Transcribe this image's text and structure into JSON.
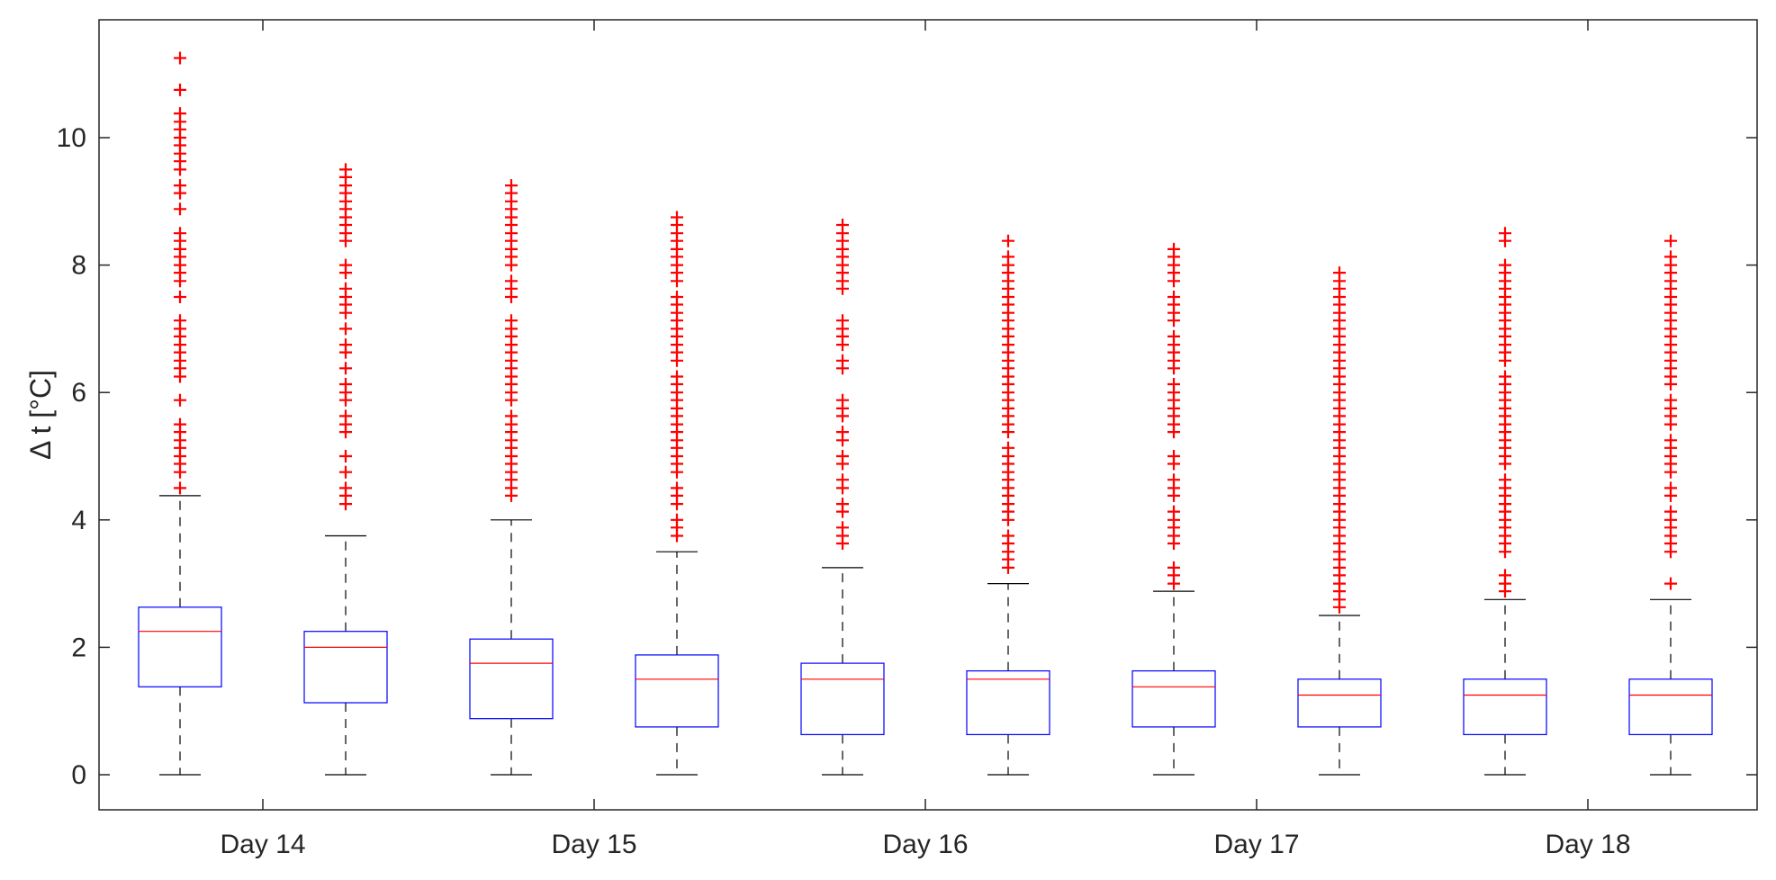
{
  "chart_data": {
    "type": "boxplot",
    "title": "",
    "xlabel": "",
    "ylabel": "Δ t [°C]",
    "ylim": [
      -0.55,
      11.85
    ],
    "yticks": [
      0,
      2,
      4,
      6,
      8,
      10
    ],
    "x_tick_labels": [
      "Day 14",
      "Day 15",
      "Day 16",
      "Day 17",
      "Day 18"
    ],
    "colors": {
      "box": "#0000ff",
      "median": "#ff0000",
      "outlier": "#ff0000",
      "whisker": "#000000",
      "axis": "#262626"
    },
    "boxes": [
      {
        "name": "box-1",
        "whisker_low": 0,
        "q1": 1.38,
        "median": 2.25,
        "q3": 2.63,
        "whisker_high": 4.38,
        "outliers": [
          4.5,
          4.75,
          4.88,
          5.0,
          5.13,
          5.25,
          5.38,
          5.5,
          5.88,
          6.25,
          6.38,
          6.5,
          6.63,
          6.75,
          6.88,
          7.0,
          7.13,
          7.5,
          7.75,
          7.88,
          8.0,
          8.13,
          8.25,
          8.38,
          8.5,
          8.88,
          9.13,
          9.25,
          9.5,
          9.63,
          9.75,
          9.88,
          10.0,
          10.13,
          10.25,
          10.38,
          10.75,
          11.25
        ]
      },
      {
        "name": "box-2",
        "whisker_low": 0,
        "q1": 1.13,
        "median": 2.0,
        "q3": 2.25,
        "whisker_high": 3.75,
        "outliers": [
          4.25,
          4.38,
          4.5,
          4.75,
          5.0,
          5.38,
          5.5,
          5.63,
          5.88,
          6.0,
          6.13,
          6.38,
          6.63,
          6.75,
          7.0,
          7.25,
          7.38,
          7.5,
          7.63,
          7.88,
          8.0,
          8.38,
          8.5,
          8.63,
          8.75,
          8.88,
          9.0,
          9.13,
          9.25,
          9.38,
          9.5
        ]
      },
      {
        "name": "box-3",
        "whisker_low": 0,
        "q1": 0.88,
        "median": 1.75,
        "q3": 2.13,
        "whisker_high": 4.0,
        "outliers": [
          4.38,
          4.5,
          4.63,
          4.75,
          4.88,
          5.0,
          5.13,
          5.25,
          5.38,
          5.5,
          5.63,
          5.88,
          6.0,
          6.13,
          6.25,
          6.38,
          6.5,
          6.63,
          6.75,
          6.88,
          7.0,
          7.13,
          7.5,
          7.63,
          7.75,
          8.0,
          8.13,
          8.25,
          8.38,
          8.5,
          8.63,
          8.75,
          8.88,
          9.0,
          9.13,
          9.25
        ]
      },
      {
        "name": "box-4",
        "whisker_low": 0,
        "q1": 0.75,
        "median": 1.5,
        "q3": 1.88,
        "whisker_high": 3.5,
        "outliers": [
          3.75,
          3.88,
          4.0,
          4.25,
          4.38,
          4.5,
          4.75,
          4.88,
          5.0,
          5.13,
          5.25,
          5.38,
          5.5,
          5.63,
          5.75,
          5.88,
          6.0,
          6.13,
          6.25,
          6.5,
          6.63,
          6.75,
          6.88,
          7.0,
          7.13,
          7.25,
          7.38,
          7.5,
          7.75,
          7.88,
          8.0,
          8.13,
          8.25,
          8.38,
          8.5,
          8.63,
          8.75
        ]
      },
      {
        "name": "box-5",
        "whisker_low": 0,
        "q1": 0.63,
        "median": 1.5,
        "q3": 1.75,
        "whisker_high": 3.25,
        "outliers": [
          3.63,
          3.75,
          3.88,
          4.13,
          4.25,
          4.5,
          4.63,
          4.88,
          5.0,
          5.25,
          5.38,
          5.63,
          5.75,
          5.88,
          6.38,
          6.5,
          6.75,
          6.88,
          7.0,
          7.13,
          7.63,
          7.75,
          7.88,
          8.0,
          8.13,
          8.25,
          8.38,
          8.5,
          8.63
        ]
      },
      {
        "name": "box-6",
        "whisker_low": 0,
        "q1": 0.63,
        "median": 1.5,
        "q3": 1.63,
        "whisker_high": 3.0,
        "outliers": [
          3.25,
          3.38,
          3.5,
          3.63,
          3.75,
          4.0,
          4.13,
          4.25,
          4.38,
          4.5,
          4.63,
          4.75,
          4.88,
          5.0,
          5.13,
          5.38,
          5.5,
          5.63,
          5.75,
          5.88,
          6.0,
          6.13,
          6.25,
          6.38,
          6.5,
          6.63,
          6.75,
          6.88,
          7.0,
          7.13,
          7.25,
          7.38,
          7.5,
          7.63,
          7.75,
          7.88,
          8.0,
          8.13,
          8.38
        ]
      },
      {
        "name": "box-7",
        "whisker_low": 0,
        "q1": 0.75,
        "median": 1.38,
        "q3": 1.63,
        "whisker_high": 2.88,
        "outliers": [
          3.0,
          3.13,
          3.25,
          3.63,
          3.75,
          3.88,
          4.0,
          4.13,
          4.38,
          4.5,
          4.63,
          4.88,
          5.0,
          5.38,
          5.5,
          5.63,
          5.75,
          5.88,
          6.0,
          6.13,
          6.38,
          6.5,
          6.63,
          6.75,
          6.88,
          7.13,
          7.25,
          7.38,
          7.5,
          7.75,
          7.88,
          8.0,
          8.13,
          8.25
        ]
      },
      {
        "name": "box-8",
        "whisker_low": 0,
        "q1": 0.75,
        "median": 1.25,
        "q3": 1.5,
        "whisker_high": 2.5,
        "outliers": [
          2.63,
          2.75,
          2.88,
          3.0,
          3.13,
          3.25,
          3.38,
          3.5,
          3.63,
          3.75,
          3.88,
          4.0,
          4.13,
          4.25,
          4.38,
          4.5,
          4.63,
          4.75,
          4.88,
          5.0,
          5.13,
          5.25,
          5.38,
          5.5,
          5.63,
          5.75,
          5.88,
          6.0,
          6.13,
          6.25,
          6.38,
          6.5,
          6.63,
          6.75,
          6.88,
          7.0,
          7.13,
          7.25,
          7.38,
          7.5,
          7.63,
          7.75,
          7.88
        ]
      },
      {
        "name": "box-9",
        "whisker_low": 0,
        "q1": 0.63,
        "median": 1.25,
        "q3": 1.5,
        "whisker_high": 2.75,
        "outliers": [
          2.88,
          3.0,
          3.13,
          3.5,
          3.63,
          3.75,
          3.88,
          4.0,
          4.13,
          4.25,
          4.38,
          4.5,
          4.63,
          4.88,
          5.0,
          5.13,
          5.25,
          5.38,
          5.5,
          5.63,
          5.75,
          5.88,
          6.0,
          6.13,
          6.25,
          6.5,
          6.63,
          6.75,
          6.88,
          7.0,
          7.13,
          7.25,
          7.38,
          7.5,
          7.63,
          7.75,
          7.88,
          8.0,
          8.38,
          8.5
        ]
      },
      {
        "name": "box-10",
        "whisker_low": 0,
        "q1": 0.63,
        "median": 1.25,
        "q3": 1.5,
        "whisker_high": 2.75,
        "outliers": [
          3.0,
          3.5,
          3.63,
          3.75,
          3.88,
          4.0,
          4.13,
          4.38,
          4.5,
          4.75,
          4.88,
          5.0,
          5.13,
          5.25,
          5.5,
          5.63,
          5.75,
          5.88,
          6.13,
          6.25,
          6.38,
          6.5,
          6.63,
          6.75,
          6.88,
          7.0,
          7.13,
          7.25,
          7.38,
          7.5,
          7.63,
          7.75,
          7.88,
          8.0,
          8.13,
          8.38
        ]
      }
    ]
  }
}
